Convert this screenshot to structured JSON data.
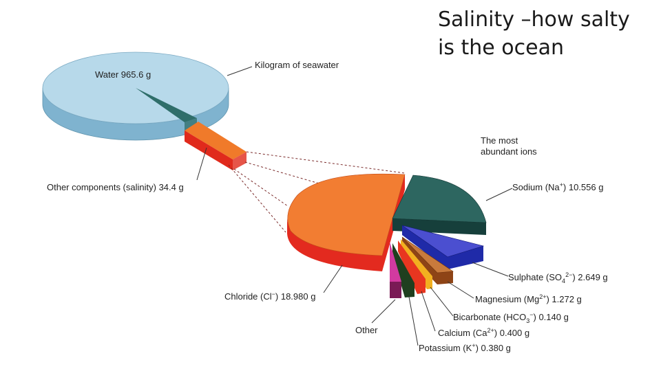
{
  "slide": {
    "title": "Salinity –how salty\nis the ocean"
  },
  "colors": {
    "water_top": "#b7d9ea",
    "water_side": "#7fb3cf",
    "salinity_slice": "#2f6e6a",
    "salinity_block_top": "#f07a2a",
    "salinity_block_side": "#e02a1c",
    "chloride_top": "#f27d32",
    "chloride_side": "#e32a1f",
    "sodium_top": "#2d6660",
    "sodium_side": "#163f3b",
    "sulphate_top": "#4b4fd0",
    "sulphate_side": "#1f2aa8",
    "magnesium_top": "#c87a3c",
    "magnesium_side": "#8e4416",
    "bicarbonate": "#f2b020",
    "calcium": "#e83620",
    "potassium": "#1f3f1f",
    "other": "#d23aa0"
  },
  "labels": {
    "water_top": "Water 965.6 g",
    "kilogram": "Kilogram of seawater",
    "salinity": "Other components (salinity) 34.4 g",
    "abundant_1": "The most",
    "abundant_2": "abundant ions",
    "sodium_a": "Sodium (Na",
    "sodium_sup": "+",
    "sodium_b": ") 10.556 g",
    "sulphate_a": "Sulphate (SO",
    "sulphate_sub": "4",
    "sulphate_sup": "2−",
    "sulphate_b": ") 2.649 g",
    "magnesium_a": "Magnesium (Mg",
    "magnesium_sup": "2+",
    "magnesium_b": ") 1.272 g",
    "bicarbonate_a": "Bicarbonate (HCO",
    "bicarbonate_sub": "3",
    "bicarbonate_sup": "−",
    "bicarbonate_b": ") 0.140 g",
    "calcium_a": "Calcium (Ca",
    "calcium_sup": "2+",
    "calcium_b": ") 0.400 g",
    "potassium_a": "Potassium (K",
    "potassium_sup": "+",
    "potassium_b": ") 0.380 g",
    "chloride_a": "Chloride (Cl",
    "chloride_sup": "−",
    "chloride_b": ") 18.980 g",
    "other": "Other"
  }
}
